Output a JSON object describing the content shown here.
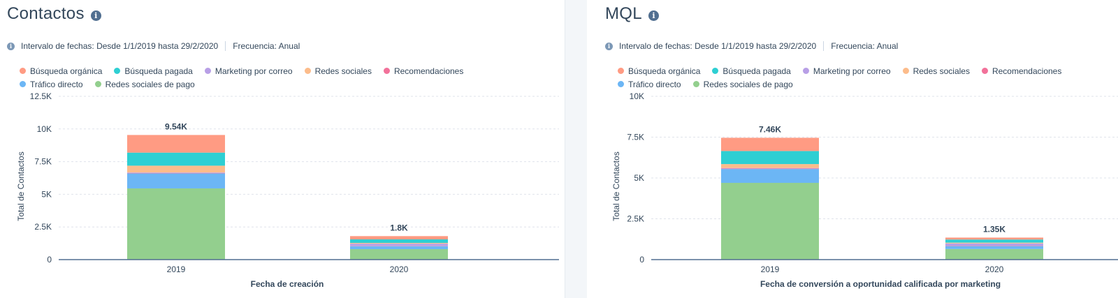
{
  "panels": [
    {
      "title": "Contactos",
      "date_range_label": "Intervalo de fechas: Desde 1/1/2019 hasta 29/2/2020",
      "frequency_label": "Frecuencia: Anual"
    },
    {
      "title": "MQL",
      "date_range_label": "Intervalo de fechas: Desde 1/1/2019 hasta 29/2/2020",
      "frequency_label": "Frecuencia: Anual"
    }
  ],
  "legend": {
    "rows": [
      [
        {
          "label": "Búsqueda orgánica",
          "color": "#ff9b83"
        },
        {
          "label": "Búsqueda pagada",
          "color": "#2ecfd3"
        },
        {
          "label": "Marketing por correo",
          "color": "#b89fe6"
        },
        {
          "label": "Redes sociales",
          "color": "#fcbc8b"
        },
        {
          "label": "Recomendaciones",
          "color": "#f2719a"
        }
      ],
      [
        {
          "label": "Tráfico directo",
          "color": "#6cb6f5"
        },
        {
          "label": "Redes sociales de pago",
          "color": "#93cf8e"
        }
      ]
    ]
  },
  "chart_data": [
    {
      "type": "bar",
      "stacked": true,
      "categories": [
        "2019",
        "2020"
      ],
      "xlabel": "Fecha de creación",
      "ylabel": "Total de Contactos",
      "ylim": [
        0,
        12500
      ],
      "yticks": [
        0,
        2500,
        5000,
        7500,
        10000,
        12500
      ],
      "ytick_labels": [
        "0",
        "2.5K",
        "5K",
        "7.5K",
        "10K",
        "12.5K"
      ],
      "totals_labels": [
        "9.54K",
        "1.8K"
      ],
      "grid": true,
      "series": [
        {
          "name": "Redes sociales de pago",
          "color": "#93cf8e",
          "values": [
            5450,
            800
          ]
        },
        {
          "name": "Tráfico directo",
          "color": "#6cb6f5",
          "values": [
            1150,
            230
          ]
        },
        {
          "name": "Recomendaciones",
          "color": "#f2719a",
          "values": [
            30,
            20
          ]
        },
        {
          "name": "Marketing por correo",
          "color": "#b89fe6",
          "values": [
            40,
            170
          ]
        },
        {
          "name": "Redes sociales",
          "color": "#fcbc8b",
          "values": [
            520,
            60
          ]
        },
        {
          "name": "Búsqueda pagada",
          "color": "#2ecfd3",
          "values": [
            1000,
            270
          ]
        },
        {
          "name": "Búsqueda orgánica",
          "color": "#ff9b83",
          "values": [
            1350,
            250
          ]
        }
      ]
    },
    {
      "type": "bar",
      "stacked": true,
      "categories": [
        "2019",
        "2020"
      ],
      "xlabel": "Fecha de conversión a oportunidad calificada por marketing",
      "ylabel": "Total de Contactos",
      "ylim": [
        0,
        10000
      ],
      "yticks": [
        0,
        2500,
        5000,
        7500,
        10000
      ],
      "ytick_labels": [
        "0",
        "2.5K",
        "5K",
        "7.5K",
        "10K"
      ],
      "totals_labels": [
        "7.46K",
        "1.35K"
      ],
      "grid": true,
      "series": [
        {
          "name": "Redes sociales de pago",
          "color": "#93cf8e",
          "values": [
            4700,
            650
          ]
        },
        {
          "name": "Tráfico directo",
          "color": "#6cb6f5",
          "values": [
            850,
            180
          ]
        },
        {
          "name": "Recomendaciones",
          "color": "#f2719a",
          "values": [
            30,
            20
          ]
        },
        {
          "name": "Marketing por correo",
          "color": "#b89fe6",
          "values": [
            30,
            140
          ]
        },
        {
          "name": "Redes sociales",
          "color": "#fcbc8b",
          "values": [
            240,
            50
          ]
        },
        {
          "name": "Búsqueda pagada",
          "color": "#2ecfd3",
          "values": [
            800,
            190
          ]
        },
        {
          "name": "Búsqueda orgánica",
          "color": "#ff9b83",
          "values": [
            810,
            120
          ]
        }
      ]
    }
  ]
}
